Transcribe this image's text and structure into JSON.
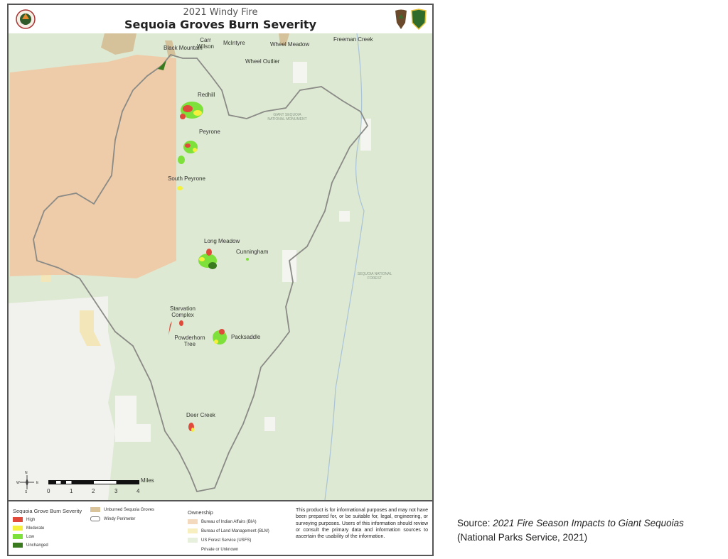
{
  "header": {
    "subtitle": "2021 Windy Fire",
    "title": "Sequoia Groves Burn Severity",
    "logos": [
      "calfire-seal-logo",
      "nps-arrowhead-logo",
      "usfs-shield-logo"
    ]
  },
  "map": {
    "grove_labels": [
      "Black Mountain",
      "Carr Wilson",
      "McIntyre",
      "Wheel Meadow",
      "Freeman Creek",
      "Wheel Outlier",
      "Redhill",
      "Peyrone",
      "South Peyrone",
      "Long Meadow",
      "Cunningham",
      "Starvation Complex",
      "Powderhorn Tree",
      "Packsaddle",
      "Deer Creek"
    ],
    "area_labels": [
      "GIANT SEQUOIA NATIONAL MONUMENT",
      "SEQUOIA NATIONAL FOREST"
    ],
    "scale": {
      "unit": "Miles",
      "ticks": [
        "0",
        "1",
        "2",
        "3",
        "4"
      ]
    },
    "compass": {
      "n": "N",
      "s": "S",
      "e": "E",
      "w": "W"
    }
  },
  "legend": {
    "severity_title": "Sequoia Grove Burn Severity",
    "severity": [
      {
        "label": "High",
        "color": "#e04a3a"
      },
      {
        "label": "Moderate",
        "color": "#f4f03c"
      },
      {
        "label": "Low",
        "color": "#7ee03a"
      },
      {
        "label": "Unchanged",
        "color": "#3a7a1e"
      }
    ],
    "other": [
      {
        "label": "Unburned Sequoia Groves",
        "color": "#d8c39a"
      },
      {
        "label": "Windy Perimeter",
        "icon": "perimeter-icon"
      }
    ],
    "ownership_title": "Ownership",
    "ownership": [
      {
        "label": "Bureau of Indian Affairs (BIA)",
        "color": "#f3d9bd"
      },
      {
        "label": "Bureau of Land Management (BLM)",
        "color": "#f8efc0"
      },
      {
        "label": "US Forest Service (USFS)",
        "color": "#e6f0dc"
      },
      {
        "label": "Private or Unknown",
        "color": "#ffffff"
      }
    ],
    "disclaimer": "This product is for informational purposes and may not have been prepared for, or be suitable for, legal, engineering, or surveying purposes. Users of this information should review or consult the primary data and information sources to ascertain the usability of the information."
  },
  "source": {
    "prefix": "Source: ",
    "title": "2021 Fire Season Impacts to Giant Sequoias",
    "citation": "(National Parks Service, 2021)"
  }
}
